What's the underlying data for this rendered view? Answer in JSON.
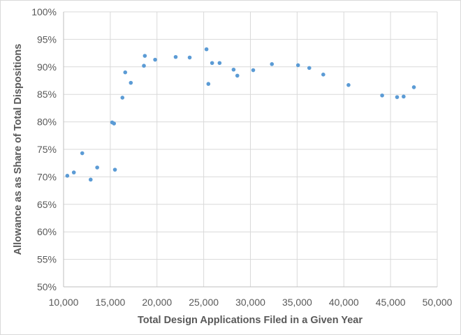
{
  "chart_data": {
    "type": "scatter",
    "title": "",
    "xlabel": "Total Design Applications Filed in a Given Year",
    "ylabel": "Allowance as as Share of Total Dispositions",
    "xlim": [
      10000,
      50000
    ],
    "ylim": [
      50,
      100
    ],
    "x_ticks": [
      10000,
      15000,
      20000,
      25000,
      30000,
      35000,
      40000,
      45000,
      50000
    ],
    "x_tick_labels": [
      "10,000",
      "15,000",
      "20,000",
      "25,000",
      "30,000",
      "35,000",
      "40,000",
      "45,000",
      "50,000"
    ],
    "y_ticks": [
      50,
      55,
      60,
      65,
      70,
      75,
      80,
      85,
      90,
      95,
      100
    ],
    "y_tick_labels": [
      "50%",
      "55%",
      "60%",
      "65%",
      "70%",
      "75%",
      "80%",
      "85%",
      "90%",
      "95%",
      "100%"
    ],
    "grid": true,
    "legend": "none",
    "series_color": "#5b9bd5",
    "points": [
      {
        "x": 10400,
        "y": 70.2
      },
      {
        "x": 11100,
        "y": 70.8
      },
      {
        "x": 12000,
        "y": 74.3
      },
      {
        "x": 12900,
        "y": 69.5
      },
      {
        "x": 13600,
        "y": 71.7
      },
      {
        "x": 15200,
        "y": 79.9
      },
      {
        "x": 15400,
        "y": 79.7
      },
      {
        "x": 15500,
        "y": 71.3
      },
      {
        "x": 16300,
        "y": 84.4
      },
      {
        "x": 16600,
        "y": 89.0
      },
      {
        "x": 17200,
        "y": 87.1
      },
      {
        "x": 18600,
        "y": 90.2
      },
      {
        "x": 18700,
        "y": 92.0
      },
      {
        "x": 19800,
        "y": 91.3
      },
      {
        "x": 22000,
        "y": 91.8
      },
      {
        "x": 23500,
        "y": 91.7
      },
      {
        "x": 25300,
        "y": 93.2
      },
      {
        "x": 25500,
        "y": 86.9
      },
      {
        "x": 25900,
        "y": 90.7
      },
      {
        "x": 26700,
        "y": 90.7
      },
      {
        "x": 28200,
        "y": 89.5
      },
      {
        "x": 28600,
        "y": 88.4
      },
      {
        "x": 30300,
        "y": 89.4
      },
      {
        "x": 32300,
        "y": 90.5
      },
      {
        "x": 35100,
        "y": 90.3
      },
      {
        "x": 36300,
        "y": 89.8
      },
      {
        "x": 37800,
        "y": 88.6
      },
      {
        "x": 40500,
        "y": 86.7
      },
      {
        "x": 44100,
        "y": 84.8
      },
      {
        "x": 45700,
        "y": 84.5
      },
      {
        "x": 46400,
        "y": 84.6
      },
      {
        "x": 47500,
        "y": 86.3
      }
    ]
  }
}
